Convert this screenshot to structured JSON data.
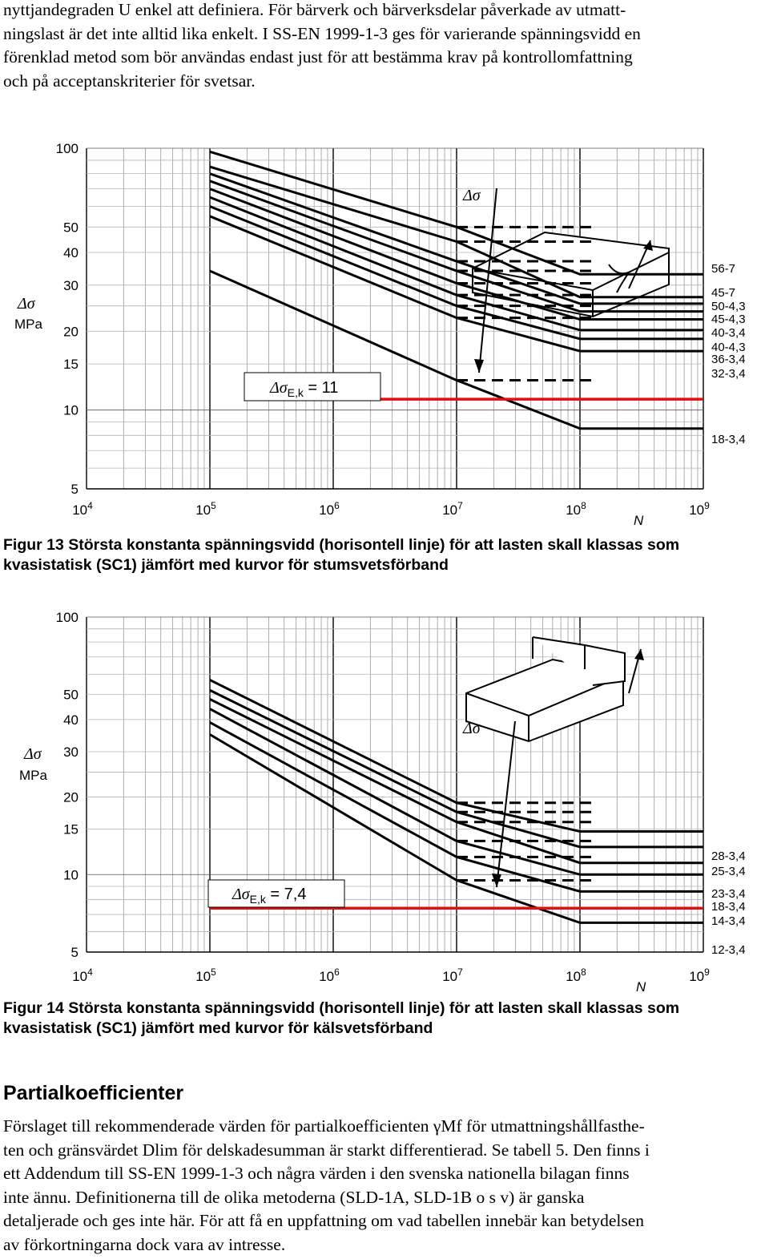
{
  "intro_lines": [
    "nyttjandegraden U enkel att definiera. För bärverk och bärverksdelar påverkade av utmatt-",
    "ningslast är det inte alltid lika enkelt. I SS-EN 1999-1-3 ges för varierande spänningsvidd en",
    "förenklad metod som bör användas endast just för att bestämma krav på kontrollomfattning",
    "och på acceptanskriterier för svetsar."
  ],
  "figure13": {
    "caption_lines": [
      "Figur 13  Största konstanta spänningsvidd (horisontell linje) för att lasten skall klassas som",
      "kvasistatisk (SC1) jämfört med kurvor för stumsvetsförband"
    ],
    "annotation_prefix": "Δσ",
    "annotation_sub": "E,k",
    "annotation_suffix": " = 11",
    "y_axis_symbol": "Δσ",
    "y_axis_unit": "MPa",
    "x_axis_label": "N",
    "sketch_symbol": "Δσ",
    "y_ticks": [
      "100",
      "50",
      "40",
      "30",
      "20",
      "15",
      "10",
      "5"
    ],
    "x_ticks": [
      {
        "base": "10",
        "exp": "4"
      },
      {
        "base": "10",
        "exp": "5"
      },
      {
        "base": "10",
        "exp": "6"
      },
      {
        "base": "10",
        "exp": "7"
      },
      {
        "base": "10",
        "exp": "8"
      },
      {
        "base": "10",
        "exp": "9"
      }
    ],
    "curve_labels": [
      "56-7",
      "45-7",
      "50-4,3",
      "45-4,3",
      "40-3,4",
      "40-4,3",
      "36-3,4",
      "32-3,4",
      "18-3,4"
    ]
  },
  "figure14": {
    "caption_lines": [
      "Figur 14  Största konstanta spänningsvidd (horisontell linje) för att lasten skall klassas som",
      "kvasistatisk (SC1) jämfört med kurvor för kälsvetsförband"
    ],
    "annotation_prefix": "Δσ",
    "annotation_sub": "E,k",
    "annotation_suffix": " = 7,4",
    "y_axis_symbol": "Δσ",
    "y_axis_unit": "MPa",
    "x_axis_label": "N",
    "sketch_symbol": "Δσ",
    "y_ticks": [
      "100",
      "50",
      "40",
      "30",
      "20",
      "15",
      "10",
      "5"
    ],
    "x_ticks": [
      {
        "base": "10",
        "exp": "4"
      },
      {
        "base": "10",
        "exp": "5"
      },
      {
        "base": "10",
        "exp": "6"
      },
      {
        "base": "10",
        "exp": "7"
      },
      {
        "base": "10",
        "exp": "8"
      },
      {
        "base": "10",
        "exp": "9"
      }
    ],
    "curve_labels": [
      "28-3,4",
      "25-3,4",
      "23-3,4",
      "18-3,4",
      "14-3,4",
      "12-3,4"
    ]
  },
  "section_heading": "Partialkoefficienter",
  "outro_lines": [
    "Förslaget till rekommenderade värden för partialkoefficienten γMf för utmattningshållfasthe-",
    "ten och gränsvärdet Dlim för delskadesumman är starkt differentierad. Se tabell 5. Den finns i",
    "ett Addendum till SS-EN 1999-1-3 och några värden i den svenska nationella bilagan finns",
    "inte ännu. Definitionerna till de olika metoderna (SLD-1A, SLD-1B o s v) är ganska",
    "detaljerade och ges inte här. För att få en uppfattning om vad tabellen innebär kan betydelsen",
    "av förkortningarna dock vara av intresse."
  ],
  "colors": {
    "limit_line": "#e01010",
    "curve": "#000000",
    "grid": "#9a9a9a"
  },
  "chart_data": [
    {
      "type": "line",
      "title": "",
      "xlabel": "N",
      "ylabel": "Δσ MPa",
      "xscale": "log",
      "yscale": "log",
      "xlim": [
        10000,
        1000000000
      ],
      "ylim": [
        5,
        100
      ],
      "limit_line": {
        "label": "Δσ E,k = 11",
        "y": 11
      },
      "series": [
        {
          "name": "56-7",
          "x": [
            100000,
            10000000,
            100000000,
            1000000000
          ],
          "y": [
            97,
            50,
            33,
            33
          ]
        },
        {
          "name": "45-7",
          "x": [
            100000,
            10000000,
            100000000,
            1000000000
          ],
          "y": [
            85,
            44,
            27,
            27
          ]
        },
        {
          "name": "50-4,3",
          "x": [
            100000,
            10000000,
            100000000,
            1000000000
          ],
          "y": [
            80,
            37,
            25.5,
            25.5
          ]
        },
        {
          "name": "45-4,3",
          "x": [
            100000,
            10000000,
            100000000,
            1000000000
          ],
          "y": [
            75,
            34,
            23.8,
            23.8
          ]
        },
        {
          "name": "40-3,4",
          "x": [
            100000,
            10000000,
            100000000,
            1000000000
          ],
          "y": [
            70,
            30.5,
            22.2,
            22.2
          ]
        },
        {
          "name": "40-4,3",
          "x": [
            100000,
            10000000,
            100000000,
            1000000000
          ],
          "y": [
            65,
            27.5,
            20.2,
            20.2
          ]
        },
        {
          "name": "36-3,4",
          "x": [
            100000,
            10000000,
            100000000,
            1000000000
          ],
          "y": [
            60,
            25,
            18.7,
            18.7
          ]
        },
        {
          "name": "32-3,4",
          "x": [
            100000,
            10000000,
            100000000,
            1000000000
          ],
          "y": [
            55,
            22.5,
            16.8,
            16.8
          ]
        },
        {
          "name": "18-3,4",
          "x": [
            100000,
            10000000,
            100000000,
            1000000000
          ],
          "y": [
            34,
            13,
            8.5,
            8.5
          ]
        }
      ]
    },
    {
      "type": "line",
      "title": "",
      "xlabel": "N",
      "ylabel": "Δσ MPa",
      "xscale": "log",
      "yscale": "log",
      "xlim": [
        10000,
        1000000000
      ],
      "ylim": [
        5,
        100
      ],
      "limit_line": {
        "label": "Δσ E,k = 7,4",
        "y": 7.4
      },
      "series": [
        {
          "name": "28-3,4",
          "x": [
            100000,
            10000000,
            100000000,
            1000000000
          ],
          "y": [
            57,
            19,
            14.7,
            14.7
          ]
        },
        {
          "name": "25-3,4",
          "x": [
            100000,
            10000000,
            100000000,
            1000000000
          ],
          "y": [
            52,
            17.5,
            12.8,
            12.8
          ]
        },
        {
          "name": "23-3,4",
          "x": [
            100000,
            10000000,
            100000000,
            1000000000
          ],
          "y": [
            48,
            16,
            11.1,
            11.1
          ]
        },
        {
          "name": "18-3,4",
          "x": [
            100000,
            10000000,
            100000000,
            1000000000
          ],
          "y": [
            44,
            13.5,
            10,
            10
          ]
        },
        {
          "name": "14-3,4",
          "x": [
            100000,
            10000000,
            100000000,
            1000000000
          ],
          "y": [
            39,
            11.7,
            8.6,
            8.6
          ]
        },
        {
          "name": "12-3,4",
          "x": [
            100000,
            10000000,
            100000000,
            1000000000
          ],
          "y": [
            35,
            9.5,
            6.5,
            6.5
          ]
        }
      ]
    }
  ]
}
